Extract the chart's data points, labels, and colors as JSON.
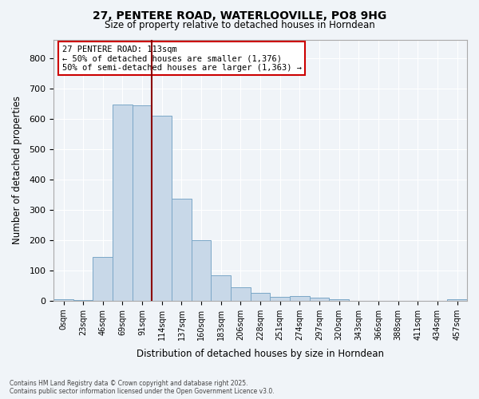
{
  "title_line1": "27, PENTERE ROAD, WATERLOOVILLE, PO8 9HG",
  "title_line2": "Size of property relative to detached houses in Horndean",
  "xlabel": "Distribution of detached houses by size in Horndean",
  "ylabel": "Number of detached properties",
  "bar_color": "#c8d8e8",
  "bar_edge_color": "#7ba7c7",
  "bin_labels": [
    "0sqm",
    "23sqm",
    "46sqm",
    "69sqm",
    "91sqm",
    "114sqm",
    "137sqm",
    "160sqm",
    "183sqm",
    "206sqm",
    "228sqm",
    "251sqm",
    "274sqm",
    "297sqm",
    "320sqm",
    "343sqm",
    "366sqm",
    "388sqm",
    "411sqm",
    "434sqm",
    "457sqm"
  ],
  "bar_values": [
    5,
    3,
    145,
    648,
    645,
    610,
    335,
    200,
    83,
    43,
    27,
    12,
    14,
    10,
    5,
    0,
    0,
    0,
    0,
    0,
    4
  ],
  "vline_color": "#8b0000",
  "annotation_text": "27 PENTERE ROAD: 113sqm\n← 50% of detached houses are smaller (1,376)\n50% of semi-detached houses are larger (1,363) →",
  "annotation_box_color": "#cc0000",
  "annotation_bg": "white",
  "ylim": [
    0,
    860
  ],
  "yticks": [
    0,
    100,
    200,
    300,
    400,
    500,
    600,
    700,
    800
  ],
  "footer_line1": "Contains HM Land Registry data © Crown copyright and database right 2025.",
  "footer_line2": "Contains public sector information licensed under the Open Government Licence v3.0.",
  "background_color": "#f0f4f8",
  "plot_bg_color": "#f0f4f8"
}
